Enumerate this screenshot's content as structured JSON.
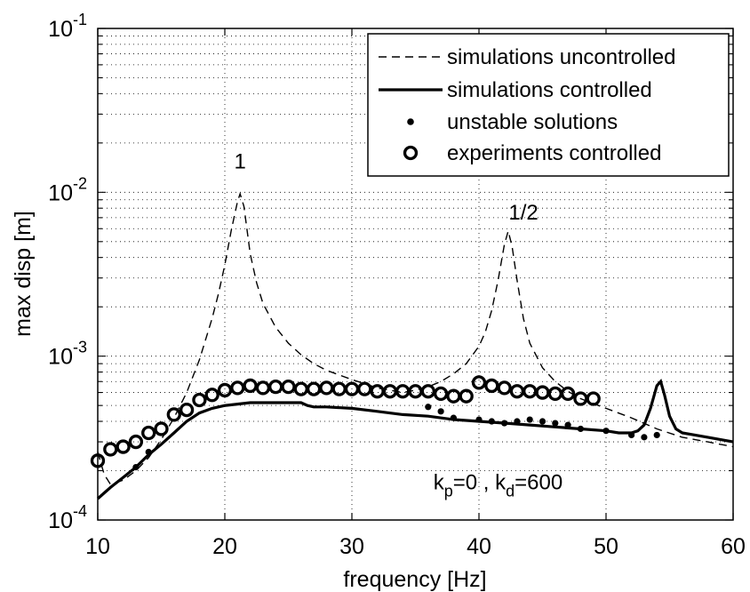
{
  "chart_data": {
    "type": "line",
    "xlabel": "frequency [Hz]",
    "ylabel": "max disp [m]",
    "xlim": [
      10,
      60
    ],
    "ylim": [
      0.0001,
      0.1
    ],
    "yscale": "log",
    "grid": true,
    "legend_position": "top-right",
    "x_ticks": [
      10,
      20,
      30,
      40,
      50,
      60
    ],
    "y_ticks": [
      {
        "value": 0.0001,
        "base": "10",
        "exp": "-4"
      },
      {
        "value": 0.001,
        "base": "10",
        "exp": "-3"
      },
      {
        "value": 0.01,
        "base": "10",
        "exp": "-2"
      },
      {
        "value": 0.1,
        "base": "10",
        "exp": "-1"
      }
    ],
    "series": [
      {
        "name": "simulations uncontrolled",
        "style": "dashed-line",
        "x": [
          10,
          10.5,
          11,
          12,
          13,
          14,
          15,
          16,
          17,
          18,
          19,
          19.5,
          20,
          20.5,
          21,
          21.2,
          21.5,
          22,
          22.5,
          23,
          24,
          25,
          26,
          27,
          28,
          30,
          32,
          34,
          35,
          36,
          37,
          38,
          39,
          40,
          40.5,
          41,
          41.5,
          42,
          42.3,
          42.6,
          43,
          43.5,
          44,
          45,
          46,
          47,
          48,
          50,
          52,
          54,
          56,
          58,
          60
        ],
        "y": [
          0.00026,
          0.00019,
          0.000165,
          0.000175,
          0.0002,
          0.00024,
          0.00031,
          0.00042,
          0.0006,
          0.00095,
          0.0017,
          0.0024,
          0.0036,
          0.0058,
          0.0088,
          0.0098,
          0.0082,
          0.0042,
          0.0028,
          0.0021,
          0.0015,
          0.0012,
          0.00102,
          0.0009,
          0.00082,
          0.00072,
          0.00064,
          0.0006,
          0.00062,
          0.00065,
          0.0007,
          0.00078,
          0.0009,
          0.00115,
          0.0014,
          0.0019,
          0.0029,
          0.0048,
          0.0058,
          0.0047,
          0.0029,
          0.0017,
          0.0012,
          0.00085,
          0.0007,
          0.00061,
          0.00055,
          0.00048,
          0.00042,
          0.00036,
          0.00032,
          0.0003,
          0.00028
        ]
      },
      {
        "name": "simulations controlled",
        "style": "solid-line",
        "x": [
          10,
          11,
          12,
          13,
          14,
          15,
          16,
          17,
          18,
          19,
          20,
          21,
          22,
          23,
          24,
          25,
          26,
          26.5,
          27,
          28,
          30,
          32,
          34,
          36,
          38,
          40,
          42,
          44,
          46,
          48,
          50,
          51,
          52,
          52.5,
          53,
          53.5,
          54,
          54.3,
          54.6,
          55,
          55.5,
          56,
          58,
          60
        ],
        "y": [
          0.000135,
          0.000158,
          0.000182,
          0.00021,
          0.00025,
          0.00029,
          0.00034,
          0.0004,
          0.00045,
          0.00048,
          0.0005,
          0.00051,
          0.00052,
          0.00052,
          0.00052,
          0.00052,
          0.00052,
          0.0005,
          0.00049,
          0.00049,
          0.00048,
          0.00046,
          0.00044,
          0.00043,
          0.00041,
          0.0004,
          0.00039,
          0.00038,
          0.00037,
          0.00036,
          0.00035,
          0.00034,
          0.00034,
          0.00035,
          0.00038,
          0.00048,
          0.00066,
          0.0007,
          0.00058,
          0.00043,
          0.00036,
          0.00034,
          0.00032,
          0.0003
        ]
      },
      {
        "name": "unstable solutions",
        "style": "dots",
        "x": [
          13,
          14,
          36,
          37,
          38,
          40,
          41,
          42,
          43,
          44,
          45,
          46,
          47,
          48,
          50,
          52,
          53,
          54
        ],
        "y": [
          0.00021,
          0.00026,
          0.00049,
          0.00046,
          0.00042,
          0.00041,
          0.0004,
          0.00039,
          0.0004,
          0.00041,
          0.0004,
          0.00039,
          0.00038,
          0.00036,
          0.00035,
          0.00033,
          0.00032,
          0.00033
        ]
      },
      {
        "name": "experiments controlled",
        "style": "circles",
        "x": [
          10,
          11,
          12,
          13,
          14,
          15,
          16,
          17,
          18,
          19,
          20,
          21,
          22,
          23,
          24,
          25,
          26,
          27,
          28,
          29,
          30,
          31,
          32,
          33,
          34,
          35,
          36,
          37,
          38,
          39,
          40,
          41,
          42,
          43,
          44,
          45,
          46,
          47,
          48,
          49
        ],
        "y": [
          0.00023,
          0.00027,
          0.00028,
          0.0003,
          0.00034,
          0.00036,
          0.00044,
          0.00047,
          0.00054,
          0.00058,
          0.00062,
          0.00064,
          0.00066,
          0.00064,
          0.00065,
          0.00065,
          0.00063,
          0.00063,
          0.00064,
          0.00063,
          0.00063,
          0.00063,
          0.00061,
          0.00061,
          0.00061,
          0.00061,
          0.00061,
          0.00059,
          0.00057,
          0.00057,
          0.00069,
          0.00066,
          0.00064,
          0.00061,
          0.00061,
          0.0006,
          0.00059,
          0.00059,
          0.00055,
          0.00055
        ]
      }
    ],
    "annotations": [
      {
        "text": "1",
        "x": 21.2,
        "y": 0.014
      },
      {
        "text": "1/2",
        "x": 43.5,
        "y": 0.0068
      }
    ],
    "params_label": {
      "k1": "k",
      "s1": "p",
      "v1": "=0 , ",
      "k2": "k",
      "s2": "d",
      "v2": "=600",
      "x": 41.5,
      "y": 0.00017
    }
  }
}
